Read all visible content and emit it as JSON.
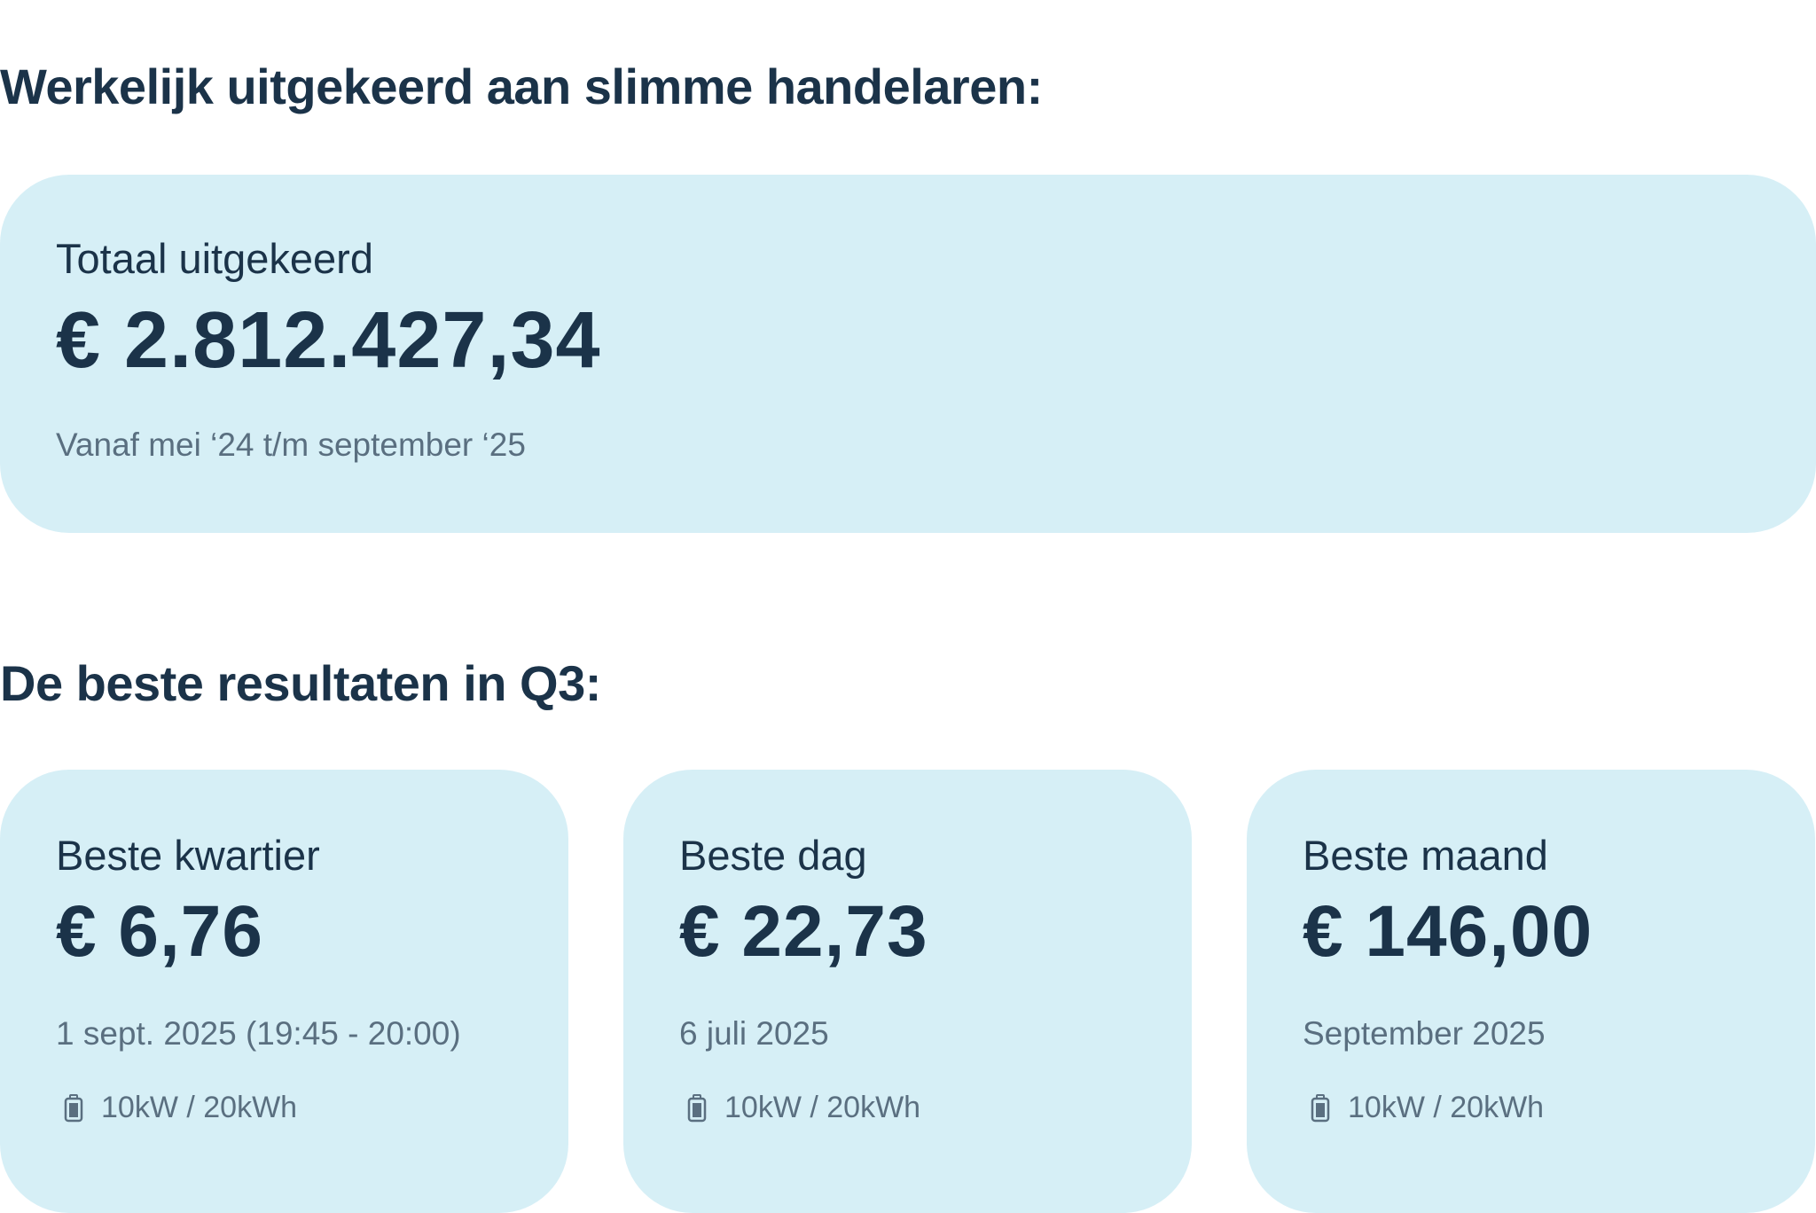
{
  "headings": {
    "paid_out": "Werkelijk uitgekeerd aan slimme handelaren:",
    "best_results": "De beste resultaten in Q3:"
  },
  "total": {
    "label": "Totaal uitgekeerd",
    "value": "€ 2.812.427,34",
    "period": "Vanaf mei ‘24 t/m september ‘25"
  },
  "cards": [
    {
      "label": "Beste kwartier",
      "value": "€ 6,76",
      "date": "1 sept. 2025 (19:45 - 20:00)",
      "icon": "battery-icon",
      "battery": "10kW / 20kWh"
    },
    {
      "label": "Beste dag",
      "value": "€ 22,73",
      "date": "6 juli 2025",
      "icon": "battery-icon",
      "battery": "10kW / 20kWh"
    },
    {
      "label": "Beste maand",
      "value": "€ 146,00",
      "date": "September 2025",
      "icon": "battery-icon",
      "battery": "10kW / 20kWh"
    }
  ],
  "colors": {
    "card_bg": "#d6eff6",
    "text": "#1b3349",
    "muted": "#5a6f80"
  }
}
